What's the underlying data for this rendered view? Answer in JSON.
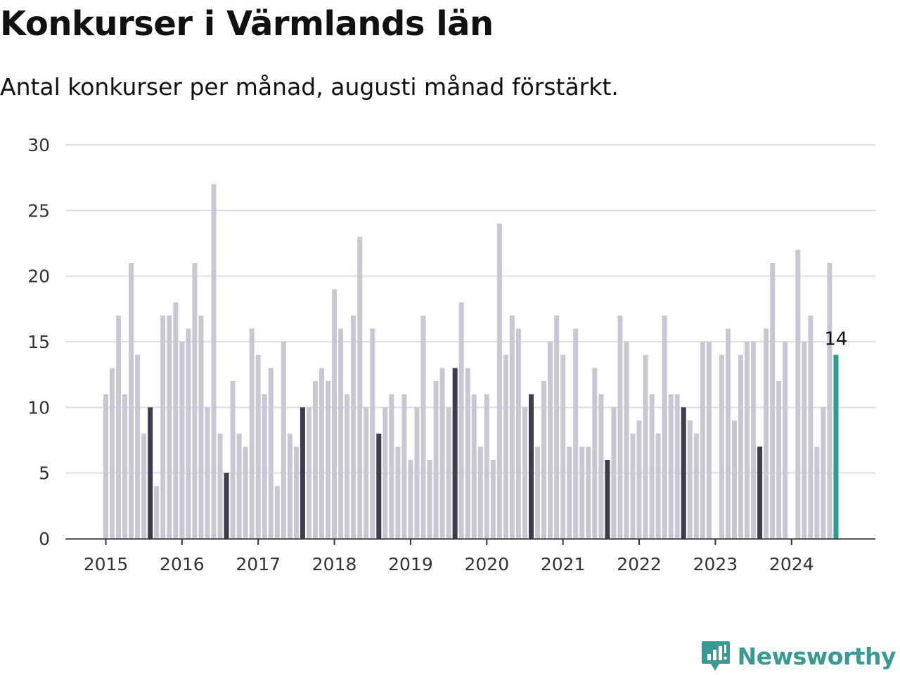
{
  "header": {
    "title": "Konkurser i Värmlands län",
    "subtitle": "Antal konkurser per månad, augusti månad förstärkt."
  },
  "logo": {
    "text": "Newsworthy",
    "icon": "newsworthy-logo-icon"
  },
  "colors": {
    "bar": "#c8c7d2",
    "august": "#3f3d4d",
    "latest": "#2a9d8f",
    "grid": "#dedde3",
    "axis": "#333333"
  },
  "chart_data": {
    "type": "bar",
    "x_start": "2015-01",
    "x_tick_labels": [
      "2015",
      "2016",
      "2017",
      "2018",
      "2019",
      "2020",
      "2021",
      "2022",
      "2023",
      "2024"
    ],
    "y_tick_labels": [
      "0",
      "5",
      "10",
      "15",
      "20",
      "25",
      "30"
    ],
    "ylim": [
      0,
      30
    ],
    "grid": true,
    "highlight": "August of each year highlighted; latest month highlighted",
    "values": [
      11,
      13,
      17,
      11,
      21,
      14,
      8,
      10,
      4,
      17,
      17,
      18,
      15,
      16,
      21,
      17,
      10,
      27,
      8,
      5,
      12,
      8,
      7,
      16,
      14,
      11,
      13,
      4,
      15,
      8,
      7,
      10,
      10,
      12,
      13,
      12,
      19,
      16,
      11,
      17,
      23,
      10,
      16,
      8,
      10,
      11,
      7,
      11,
      6,
      10,
      17,
      6,
      12,
      13,
      10,
      13,
      18,
      13,
      11,
      7,
      11,
      6,
      24,
      14,
      17,
      16,
      10,
      11,
      7,
      12,
      15,
      17,
      14,
      7,
      16,
      7,
      7,
      13,
      11,
      6,
      10,
      17,
      15,
      8,
      9,
      14,
      11,
      8,
      17,
      11,
      11,
      10,
      9,
      8,
      15,
      15,
      0,
      14,
      16,
      9,
      14,
      15,
      15,
      7,
      16,
      21,
      12,
      15,
      0,
      22,
      15,
      17,
      7,
      10,
      21,
      14
    ],
    "latest_label": "14"
  }
}
